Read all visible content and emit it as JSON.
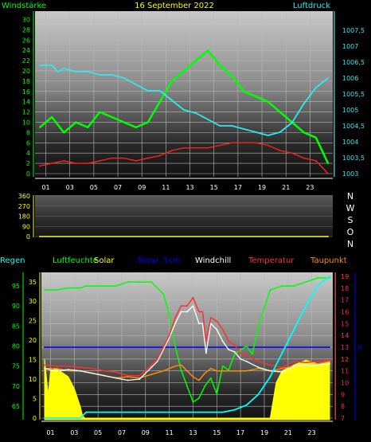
{
  "chart_data": [
    {
      "type": "line",
      "title": "16 September 2022",
      "ylabel_left": "Windstärke",
      "ylabel_right": "Luftdruck",
      "x_ticks": [
        "01",
        "03",
        "05",
        "07",
        "09",
        "11",
        "13",
        "15",
        "17",
        "19",
        "21",
        "23"
      ],
      "y_left_ticks": [
        "0",
        "2",
        "4",
        "6",
        "8",
        "10",
        "12",
        "14",
        "16",
        "18",
        "20",
        "22",
        "24",
        "26",
        "28",
        "30"
      ],
      "y_right_ticks": [
        "1003",
        "1003,5",
        "1004",
        "1004,5",
        "1005",
        "1005,5",
        "1006",
        "1006,5",
        "1007",
        "1007,5"
      ],
      "ylim_left": [
        0,
        31
      ],
      "ylim_right": [
        1003,
        1008
      ],
      "series": [
        {
          "name": "Windstärke",
          "color": "#00ff00",
          "axis": "left",
          "x": [
            0,
            1,
            2,
            3,
            4,
            5,
            6,
            7,
            8,
            9,
            10,
            11,
            12,
            13,
            14,
            15,
            16,
            17,
            18,
            19,
            20,
            21,
            22,
            23,
            24
          ],
          "values": [
            9,
            11,
            8,
            10,
            9,
            12,
            11,
            10,
            9,
            10,
            14,
            18,
            20,
            22,
            24,
            21,
            19,
            16,
            15,
            14,
            12,
            10,
            8,
            7,
            2
          ]
        },
        {
          "name": "Windstärke Mittel",
          "color": "#ff2020",
          "axis": "left",
          "x": [
            0,
            1,
            2,
            3,
            4,
            5,
            6,
            7,
            8,
            9,
            10,
            11,
            12,
            13,
            14,
            15,
            16,
            17,
            18,
            19,
            20,
            21,
            22,
            23,
            24
          ],
          "values": [
            1.5,
            2,
            2.5,
            2,
            2,
            2.5,
            3,
            3,
            2.5,
            3,
            3.5,
            4.5,
            5,
            5,
            5,
            5.5,
            6,
            6,
            6,
            5.5,
            4.5,
            4,
            3,
            2.5,
            0
          ]
        },
        {
          "name": "Luftdruck",
          "color": "#30e8f0",
          "axis": "right",
          "x": [
            0,
            1,
            1.5,
            2,
            3,
            4,
            5,
            6,
            7,
            8,
            9,
            10,
            11,
            12,
            13,
            14,
            15,
            16,
            17,
            18,
            19,
            20,
            21,
            22,
            23,
            24
          ],
          "values": [
            1006.4,
            1006.4,
            1006.2,
            1006.3,
            1006.2,
            1006.2,
            1006.1,
            1006.1,
            1006.0,
            1005.8,
            1005.6,
            1005.6,
            1005.3,
            1005.0,
            1004.9,
            1004.7,
            1004.5,
            1004.5,
            1004.4,
            1004.3,
            1004.2,
            1004.3,
            1004.6,
            1005.2,
            1005.7,
            1006.0
          ]
        }
      ]
    },
    {
      "type": "line",
      "title": "",
      "y_ticks": [
        "0",
        "90",
        "180",
        "270",
        "360"
      ],
      "ylim": [
        0,
        360
      ],
      "direction_labels": [
        "N",
        "W",
        "S",
        "O",
        "N"
      ],
      "series": [
        {
          "name": "Windrichtung",
          "color": "#ffff00",
          "x": [
            0,
            24
          ],
          "values": [
            0,
            0
          ]
        }
      ]
    },
    {
      "type": "line",
      "title": "",
      "x_ticks": [
        "01",
        "03",
        "05",
        "07",
        "09",
        "11",
        "13",
        "15",
        "17",
        "19",
        "21",
        "23"
      ],
      "legend": [
        {
          "label": "Regen",
          "color": "#00ffff"
        },
        {
          "label": "Luftfeuchte",
          "color": "#00ff00"
        },
        {
          "label": "Solar",
          "color": "#ffff00"
        },
        {
          "label": "Temp. 5cm",
          "color": "#0000ff"
        },
        {
          "label": "Windchill",
          "color": "#ffffff"
        },
        {
          "label": "Temperatur",
          "color": "#ff3030"
        },
        {
          "label": "Taupunkt",
          "color": "#ff8c00"
        }
      ],
      "y_left_ticks": [
        "65",
        "70",
        "75",
        "80",
        "85",
        "90",
        "95"
      ],
      "y_rain_ticks": [
        "0",
        "5",
        "10",
        "15",
        "20",
        "25",
        "30",
        "35"
      ],
      "y_right_ticks": [
        "7",
        "8",
        "9",
        "10",
        "11",
        "12",
        "13",
        "14",
        "15",
        "16",
        "17",
        "18",
        "19"
      ],
      "y_blue_ticks": [
        "0"
      ],
      "ylim_left": [
        62,
        98
      ],
      "ylim_right": [
        7,
        19.2
      ],
      "series": [
        {
          "name": "Luftfeuchte",
          "color": "#00ff00",
          "axis": "left",
          "x": [
            0,
            1,
            2,
            3,
            3.5,
            4,
            5,
            6,
            7,
            8,
            9,
            10,
            10.5,
            11,
            11.5,
            12,
            12.5,
            13,
            13.5,
            14,
            14.5,
            15,
            15.5,
            16,
            17,
            17.5,
            18,
            19,
            20,
            21,
            22,
            23,
            24
          ],
          "values": [
            94,
            94,
            94.5,
            94.5,
            95,
            95,
            95,
            95,
            96,
            96,
            96,
            93,
            88,
            80,
            74,
            70,
            66,
            67,
            70,
            72,
            68,
            75,
            74,
            78,
            80,
            78,
            85,
            94,
            95,
            95,
            96,
            97,
            97
          ]
        },
        {
          "name": "Temperatur",
          "color": "#ff3030",
          "axis": "right",
          "x": [
            0,
            1,
            2,
            3,
            4,
            5,
            6,
            7,
            8,
            9,
            9.5,
            10,
            10.5,
            11,
            11.5,
            12,
            12.5,
            13,
            13.3,
            13.6,
            14,
            14.5,
            15,
            15.5,
            16,
            16.5,
            17,
            18,
            19,
            20,
            21,
            22,
            23,
            24
          ],
          "values": [
            11.5,
            11.4,
            11.4,
            11.3,
            11.2,
            11.0,
            10.9,
            10.6,
            10.6,
            11.5,
            12.0,
            13.0,
            14.0,
            15.5,
            16.5,
            16.5,
            17.2,
            16.0,
            16.0,
            13.5,
            15.5,
            15.2,
            14.5,
            13.5,
            13.2,
            12.5,
            12.3,
            11.8,
            11.5,
            11.3,
            11.8,
            11.7,
            11.8,
            11.9
          ]
        },
        {
          "name": "Windchill",
          "color": "#ffffff",
          "axis": "right",
          "x": [
            0,
            1,
            2,
            3,
            4,
            5,
            6,
            7,
            8,
            9,
            9.5,
            10,
            10.5,
            11,
            11.5,
            12,
            12.5,
            13,
            13.3,
            13.6,
            14,
            14.5,
            15,
            15.5,
            16,
            16.5,
            17,
            18,
            19,
            20,
            21,
            22,
            23,
            24
          ],
          "values": [
            11.2,
            11.0,
            11.1,
            11.0,
            10.8,
            10.6,
            10.4,
            10.2,
            10.3,
            11.3,
            11.8,
            12.8,
            13.8,
            15.0,
            16.0,
            16.0,
            16.5,
            15.0,
            15.0,
            12.5,
            15.0,
            14.5,
            13.5,
            12.8,
            12.6,
            12.0,
            11.8,
            11.3,
            11.0,
            10.9,
            11.4,
            11.5,
            11.5,
            11.6
          ]
        },
        {
          "name": "Taupunkt",
          "color": "#ff8c00",
          "axis": "right",
          "x": [
            0,
            1,
            2,
            3,
            4,
            5,
            6,
            7,
            8,
            9,
            10,
            10.5,
            11,
            11.5,
            12,
            12.5,
            13,
            13.5,
            14,
            14.5,
            15,
            16,
            17,
            18,
            19,
            20,
            21,
            22,
            23,
            24
          ],
          "values": [
            11.2,
            11.2,
            11.0,
            11.0,
            10.8,
            10.6,
            10.4,
            10.5,
            10.4,
            10.7,
            11.0,
            11.2,
            11.4,
            11.5,
            11.0,
            10.5,
            10.2,
            10.8,
            11.2,
            11.0,
            11.0,
            11.0,
            11.0,
            11.2,
            11.0,
            11.2,
            11.4,
            11.5,
            11.6,
            11.8
          ]
        },
        {
          "name": "Temp. 5cm",
          "color": "#0000ff",
          "axis": "right",
          "x": [
            0,
            24
          ],
          "values": [
            13,
            13
          ]
        },
        {
          "name": "Solar",
          "color": "#ffff00",
          "axis": "right",
          "x": [
            0,
            0.3,
            0.5,
            1,
            2,
            2.5,
            3,
            3.2,
            3.4,
            8,
            14,
            19,
            19.5,
            20,
            21,
            22,
            23,
            24
          ],
          "values": [
            12,
            9,
            11,
            11.2,
            10.5,
            9.5,
            8,
            7.2,
            7,
            7,
            7,
            7,
            10,
            11,
            11.5,
            11.9,
            11.6,
            11.8
          ]
        },
        {
          "name": "Regen",
          "color": "#00ffff",
          "axis": "right",
          "x": [
            0,
            3,
            3.5,
            6,
            8,
            12,
            15,
            16,
            17,
            18,
            19,
            20,
            21,
            22,
            23,
            24
          ],
          "values": [
            7,
            7,
            7.5,
            7.5,
            7.5,
            7.5,
            7.5,
            7.7,
            8.1,
            9.0,
            10.5,
            12.5,
            14.5,
            16.5,
            18.2,
            19.0
          ]
        }
      ]
    }
  ]
}
